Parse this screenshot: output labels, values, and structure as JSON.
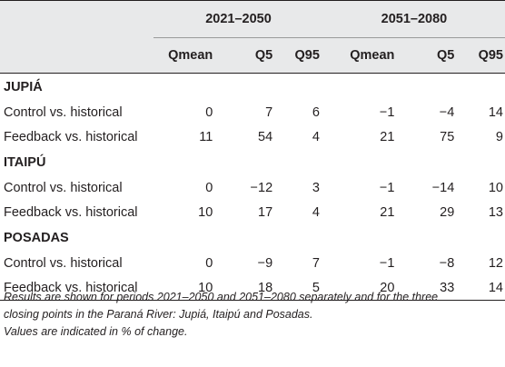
{
  "header": {
    "period1": "2021–2050",
    "period2": "2051–2080",
    "columns": [
      "Qmean",
      "Q5",
      "Q95",
      "Qmean",
      "Q5",
      "Q95"
    ]
  },
  "groups": [
    {
      "name": "JUPIÁ",
      "rows": [
        {
          "label": "Control vs. historical",
          "values": [
            "0",
            "7",
            "6",
            "−1",
            "−4",
            "14"
          ]
        },
        {
          "label": "Feedback vs. historical",
          "values": [
            "11",
            "54",
            "4",
            "21",
            "75",
            "9"
          ]
        }
      ]
    },
    {
      "name": "ITAIPÚ",
      "rows": [
        {
          "label": "Control vs. historical",
          "values": [
            "0",
            "−12",
            "3",
            "−1",
            "−14",
            "10"
          ]
        },
        {
          "label": "Feedback vs. historical",
          "values": [
            "10",
            "17",
            "4",
            "21",
            "29",
            "13"
          ]
        }
      ]
    },
    {
      "name": "POSADAS",
      "rows": [
        {
          "label": "Control vs. historical",
          "values": [
            "0",
            "−9",
            "7",
            "−1",
            "−8",
            "12"
          ]
        },
        {
          "label": "Feedback vs. historical",
          "values": [
            "10",
            "18",
            "5",
            "20",
            "33",
            "14"
          ]
        }
      ]
    }
  ],
  "footnote": {
    "line1": "Results are shown for periods 2021–2050 and 2051–2080 separately and for the three",
    "line2": "closing points in the Paraná River: Jupiá, Itaipú and Posadas.",
    "line3": "Values are indicated in % of change."
  }
}
